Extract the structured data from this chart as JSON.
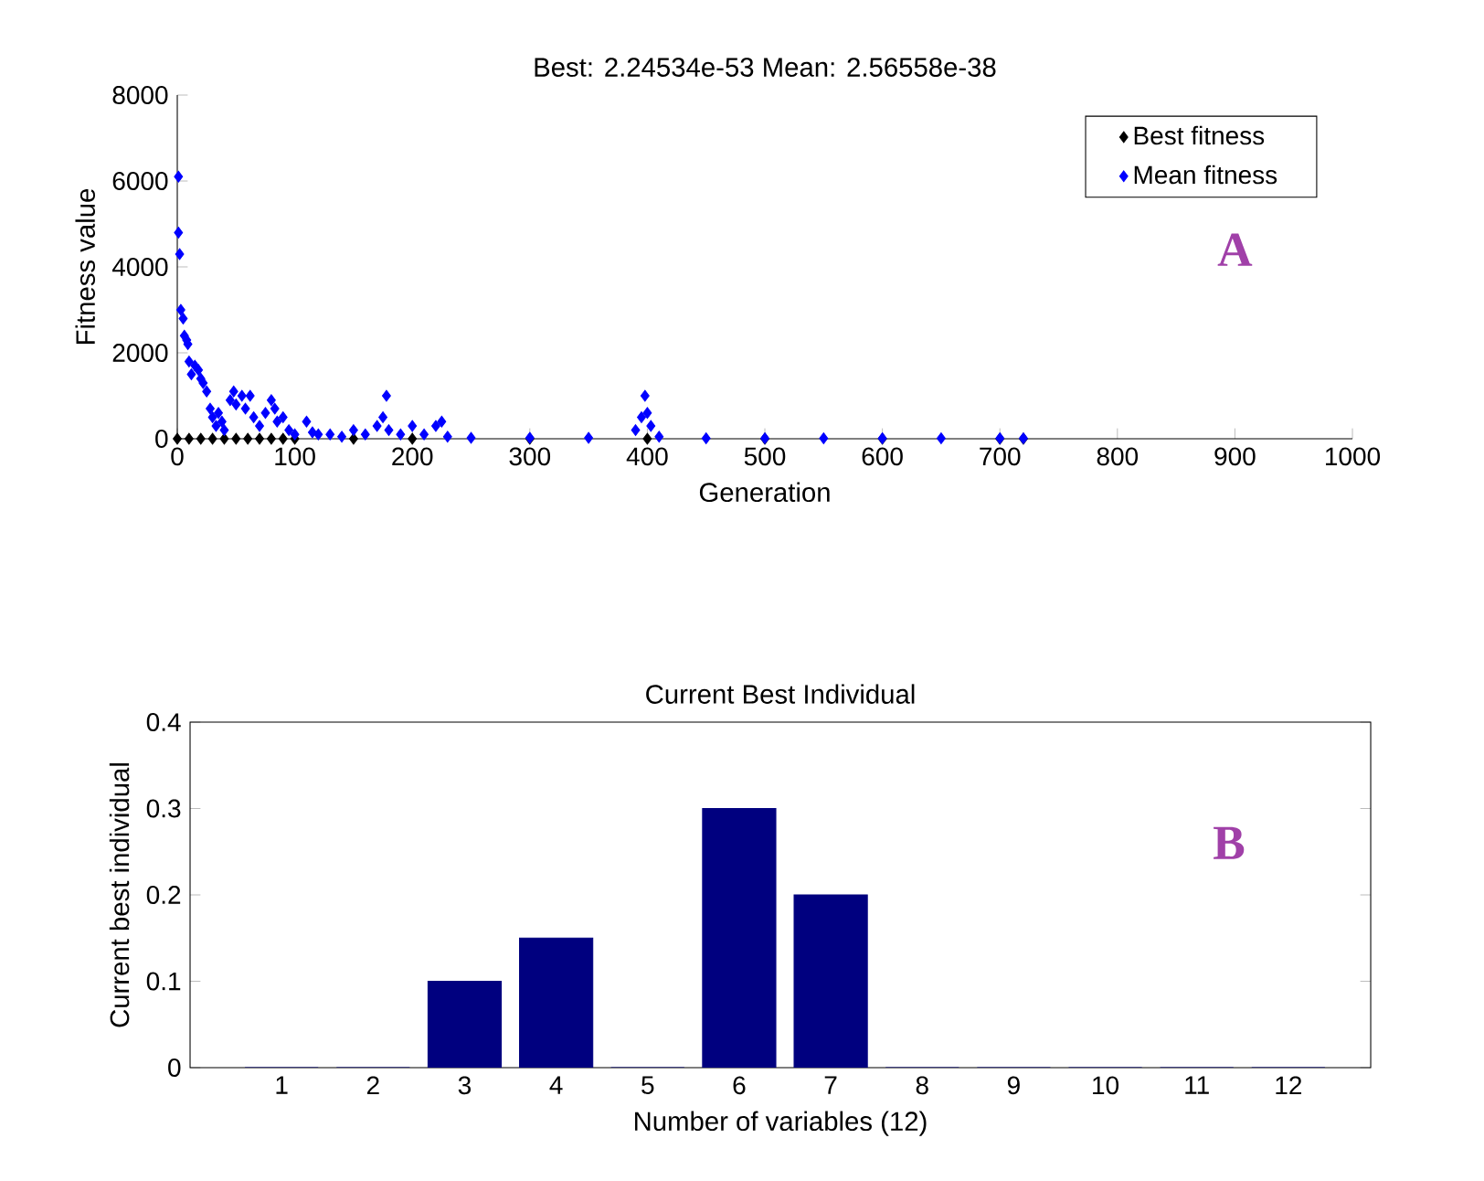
{
  "chart_data": [
    {
      "type": "scatter",
      "title": "Best: 2.24534e-53 Mean: 2.56558e-38",
      "xlabel": "Generation",
      "ylabel": "Fitness value",
      "xlim": [
        0,
        1000
      ],
      "ylim": [
        0,
        8000
      ],
      "xticks": [
        0,
        100,
        200,
        300,
        400,
        500,
        600,
        700,
        800,
        900,
        1000
      ],
      "yticks": [
        0,
        2000,
        4000,
        6000,
        8000
      ],
      "legend": "top right",
      "marker": "diamond",
      "annotations": [
        "A"
      ],
      "series": [
        {
          "name": "Best fitness",
          "color": "#000000",
          "x": [
            0,
            10,
            20,
            30,
            40,
            50,
            60,
            70,
            80,
            90,
            100,
            150,
            200,
            300,
            400,
            500,
            600,
            700,
            720
          ],
          "values": [
            0,
            0,
            0,
            0,
            0,
            0,
            0,
            0,
            0,
            0,
            0,
            0,
            0,
            0,
            0,
            0,
            0,
            0,
            0
          ]
        },
        {
          "name": "Mean fitness",
          "color": "#0000ff",
          "x": [
            1,
            1,
            2,
            3,
            5,
            6,
            8,
            9,
            10,
            12,
            15,
            18,
            20,
            22,
            25,
            28,
            30,
            33,
            35,
            38,
            40,
            45,
            48,
            50,
            55,
            58,
            62,
            65,
            70,
            75,
            80,
            83,
            85,
            90,
            95,
            100,
            110,
            115,
            120,
            130,
            140,
            150,
            160,
            170,
            175,
            178,
            180,
            190,
            200,
            210,
            220,
            225,
            230,
            250,
            300,
            350,
            390,
            395,
            398,
            400,
            403,
            410,
            450,
            500,
            550,
            600,
            650,
            700,
            720
          ],
          "values": [
            6100,
            4800,
            4300,
            3000,
            2800,
            2400,
            2300,
            2200,
            1800,
            1500,
            1700,
            1600,
            1400,
            1300,
            1100,
            700,
            500,
            300,
            600,
            400,
            200,
            900,
            1100,
            800,
            1000,
            700,
            1000,
            500,
            300,
            600,
            900,
            700,
            400,
            500,
            200,
            100,
            400,
            150,
            100,
            100,
            50,
            200,
            100,
            300,
            500,
            1000,
            200,
            100,
            300,
            100,
            300,
            400,
            50,
            20,
            20,
            20,
            200,
            500,
            1000,
            600,
            300,
            50,
            10,
            10,
            10,
            10,
            10,
            10,
            10
          ]
        }
      ]
    },
    {
      "type": "bar",
      "title": "Current Best Individual",
      "xlabel": "Number of variables (12)",
      "ylabel": "Current best individual",
      "categories": [
        "1",
        "2",
        "3",
        "4",
        "5",
        "6",
        "7",
        "8",
        "9",
        "10",
        "11",
        "12"
      ],
      "values": [
        0,
        0,
        0.1,
        0.15,
        0,
        0.3,
        0.2,
        0,
        0,
        0,
        0,
        0
      ],
      "color": "#00007f",
      "ylim": [
        0,
        0.4
      ],
      "yticks": [
        0,
        0.1,
        0.2,
        0.3,
        0.4
      ],
      "annotations": [
        "B"
      ]
    }
  ]
}
